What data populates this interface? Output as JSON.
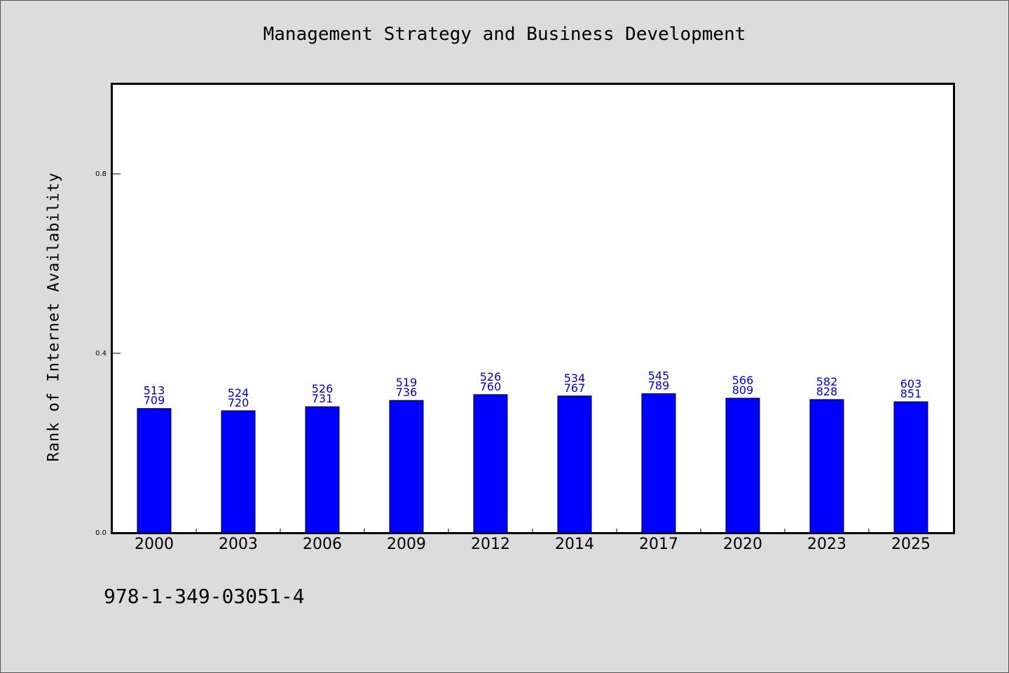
{
  "chart_data": {
    "type": "bar",
    "title": "Management Strategy and Business Development",
    "ylabel": "Rank of Internet Availability",
    "xlabel": "",
    "ylim": [
      0,
      1.0
    ],
    "yticks": [
      "0.0",
      "0.4",
      "0.8"
    ],
    "ytick_values": [
      0.0,
      0.4,
      0.8
    ],
    "grid": false,
    "categories": [
      "2000",
      "2003",
      "2006",
      "2009",
      "2012",
      "2014",
      "2017",
      "2020",
      "2023",
      "2025"
    ],
    "values": [
      0.277,
      0.272,
      0.281,
      0.295,
      0.308,
      0.305,
      0.31,
      0.3,
      0.297,
      0.292
    ],
    "label_top": [
      "513",
      "524",
      "526",
      "519",
      "526",
      "534",
      "545",
      "566",
      "582",
      "603"
    ],
    "label_bottom": [
      "709",
      "720",
      "731",
      "736",
      "760",
      "767",
      "789",
      "809",
      "828",
      "851"
    ],
    "bar_color": "#0000ff",
    "label_color": "#0000cc"
  },
  "footer": {
    "isbn": "978-1-349-03051-4"
  }
}
